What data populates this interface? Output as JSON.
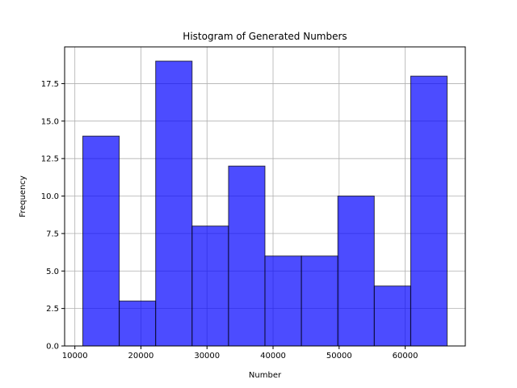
{
  "chart_data": {
    "type": "bar",
    "title": "Histogram of Generated Numbers",
    "xlabel": "Number",
    "ylabel": "Frequency",
    "bin_edges": [
      11200,
      16715,
      22230,
      27745,
      33260,
      38775,
      44290,
      49805,
      55320,
      60835,
      66350
    ],
    "values": [
      14,
      3,
      19,
      8,
      12,
      6,
      6,
      10,
      4,
      18
    ],
    "xlim": [
      8450,
      69100
    ],
    "ylim": [
      0,
      19.95
    ],
    "x_ticks": [
      10000,
      20000,
      30000,
      40000,
      50000,
      60000
    ],
    "x_tick_labels": [
      "10000",
      "20000",
      "30000",
      "40000",
      "50000",
      "60000"
    ],
    "y_ticks": [
      0,
      2.5,
      5,
      7.5,
      10,
      12.5,
      15,
      17.5
    ],
    "y_tick_labels": [
      "0.0",
      "2.5",
      "5.0",
      "7.5",
      "10.0",
      "12.5",
      "15.0",
      "17.5"
    ],
    "grid": true,
    "bar_color": "#0000ff",
    "bar_alpha": 0.7,
    "edge_color": "#000000"
  }
}
